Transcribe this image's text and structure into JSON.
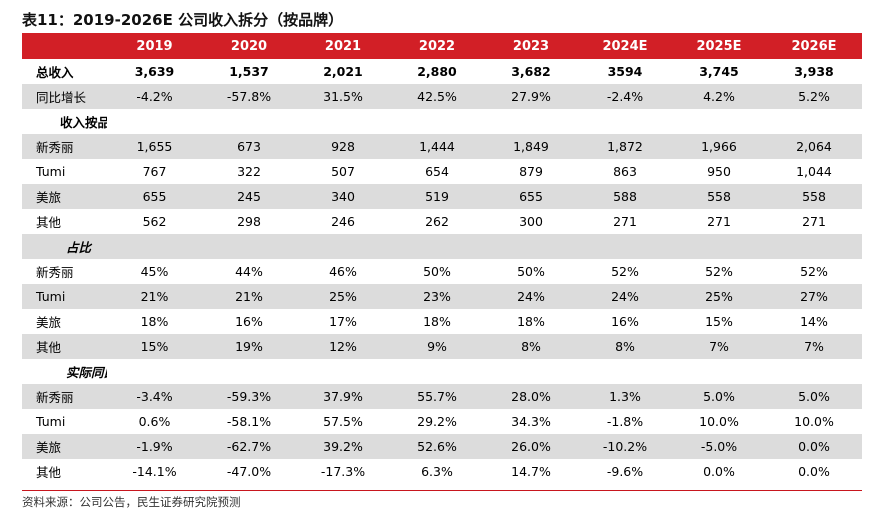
{
  "title": "表11：2019-2026E 公司收入拆分（按品牌）",
  "columns": [
    "2019",
    "2020",
    "2021",
    "2022",
    "2023",
    "2024E",
    "2025E",
    "2026E"
  ],
  "rows": [
    {
      "label": "总收入",
      "values": [
        "3,639",
        "1,537",
        "2,021",
        "2,880",
        "3,682",
        "3594",
        "3,745",
        "3,938"
      ],
      "kind": "bold",
      "shade": false
    },
    {
      "label": "同比增长",
      "values": [
        "-4.2%",
        "-57.8%",
        "31.5%",
        "42.5%",
        "27.9%",
        "-2.4%",
        "4.2%",
        "5.2%"
      ],
      "kind": "data",
      "shade": true
    },
    {
      "label": "收入按品牌分类",
      "values": [
        "",
        "",
        "",
        "",
        "",
        "",
        "",
        ""
      ],
      "kind": "section",
      "shade": false
    },
    {
      "label": "新秀丽",
      "values": [
        "1,655",
        "673",
        "928",
        "1,444",
        "1,849",
        "1,872",
        "1,966",
        "2,064"
      ],
      "kind": "data",
      "shade": true
    },
    {
      "label": "Tumi",
      "values": [
        "767",
        "322",
        "507",
        "654",
        "879",
        "863",
        "950",
        "1,044"
      ],
      "kind": "data",
      "shade": false
    },
    {
      "label": "美旅",
      "values": [
        "655",
        "245",
        "340",
        "519",
        "655",
        "588",
        "558",
        "558"
      ],
      "kind": "data",
      "shade": true
    },
    {
      "label": "其他",
      "values": [
        "562",
        "298",
        "246",
        "262",
        "300",
        "271",
        "271",
        "271"
      ],
      "kind": "data",
      "shade": false
    },
    {
      "label": "占比",
      "values": [
        "",
        "",
        "",
        "",
        "",
        "",
        "",
        ""
      ],
      "kind": "section-ital",
      "shade": true
    },
    {
      "label": "新秀丽",
      "values": [
        "45%",
        "44%",
        "46%",
        "50%",
        "50%",
        "52%",
        "52%",
        "52%"
      ],
      "kind": "data",
      "shade": false
    },
    {
      "label": "Tumi",
      "values": [
        "21%",
        "21%",
        "25%",
        "23%",
        "24%",
        "24%",
        "25%",
        "27%"
      ],
      "kind": "data",
      "shade": true
    },
    {
      "label": "美旅",
      "values": [
        "18%",
        "16%",
        "17%",
        "18%",
        "18%",
        "16%",
        "15%",
        "14%"
      ],
      "kind": "data",
      "shade": false
    },
    {
      "label": "其他",
      "values": [
        "15%",
        "19%",
        "12%",
        "9%",
        "8%",
        "8%",
        "7%",
        "7%"
      ],
      "kind": "data",
      "shade": true
    },
    {
      "label": "实际同比增长",
      "values": [
        "",
        "",
        "",
        "",
        "",
        "",
        "",
        ""
      ],
      "kind": "section-ital",
      "shade": false
    },
    {
      "label": "新秀丽",
      "values": [
        "-3.4%",
        "-59.3%",
        "37.9%",
        "55.7%",
        "28.0%",
        "1.3%",
        "5.0%",
        "5.0%"
      ],
      "kind": "data",
      "shade": true
    },
    {
      "label": "Tumi",
      "values": [
        "0.6%",
        "-58.1%",
        "57.5%",
        "29.2%",
        "34.3%",
        "-1.8%",
        "10.0%",
        "10.0%"
      ],
      "kind": "data",
      "shade": false
    },
    {
      "label": "美旅",
      "values": [
        "-1.9%",
        "-62.7%",
        "39.2%",
        "52.6%",
        "26.0%",
        "-10.2%",
        "-5.0%",
        "0.0%"
      ],
      "kind": "data",
      "shade": true
    },
    {
      "label": "其他",
      "values": [
        "-14.1%",
        "-47.0%",
        "-17.3%",
        "6.3%",
        "14.7%",
        "-9.6%",
        "0.0%",
        "0.0%"
      ],
      "kind": "data",
      "shade": false
    }
  ],
  "source": "资料来源：公司公告，民生证券研究院预测",
  "colors": {
    "header_bg": "#d21f26",
    "shade_bg": "#dcdcdc",
    "rule": "#c8161e"
  }
}
